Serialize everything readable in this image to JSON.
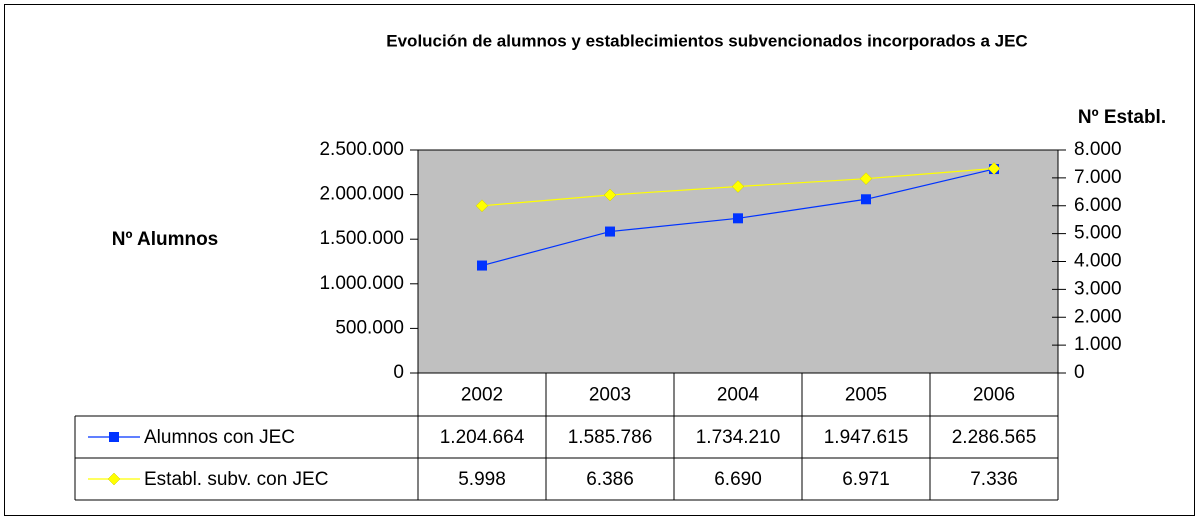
{
  "chart_data": {
    "type": "line",
    "title": "Evolución de alumnos y establecimientos subvencionados incorporados a JEC",
    "y_label": "Nº Alumnos",
    "y2_label": "Nº Establ.",
    "categories": [
      "2002",
      "2003",
      "2004",
      "2005",
      "2006"
    ],
    "series": [
      {
        "name": "Alumnos con JEC",
        "color": "#0033ff",
        "values": [
          1204664,
          1585786,
          1734210,
          1947615,
          2286565
        ],
        "value_labels": [
          "1.204.664",
          "1.585.786",
          "1.734.210",
          "1.947.615",
          "2.286.565"
        ]
      },
      {
        "name": "Establ. subv. con JEC",
        "color": "#ffff00",
        "axis": "y2",
        "values": [
          5998,
          6386,
          6690,
          6971,
          7336
        ],
        "value_labels": [
          "5.998",
          "6.386",
          "6.690",
          "6.971",
          "7.336"
        ]
      }
    ],
    "ylim": [
      0,
      2500000
    ],
    "yticks": [
      0,
      {
        "value": 500000,
        "label": "500.000"
      },
      {
        "value": 1000000,
        "label": "1.000.000"
      },
      {
        "value": 1500000,
        "label": "1.500.000"
      },
      {
        "value": 2000000,
        "label": "2.000.000"
      },
      {
        "value": 2500000,
        "label": "2.500.000"
      }
    ],
    "y2lim": [
      0,
      8000
    ],
    "y2ticks": [
      0,
      {
        "value": 1000,
        "label": "1.000"
      },
      {
        "value": 2000,
        "label": "2.000"
      },
      {
        "value": 3000,
        "label": "3.000"
      },
      {
        "value": 4000,
        "label": "4.000"
      },
      {
        "value": 5000,
        "label": "5.000"
      },
      {
        "value": 6000,
        "label": "6.000"
      },
      {
        "value": 7000,
        "label": "7.000"
      },
      {
        "value": 8000,
        "label": "8.000"
      }
    ],
    "plot_background": "#c0c0c0"
  }
}
